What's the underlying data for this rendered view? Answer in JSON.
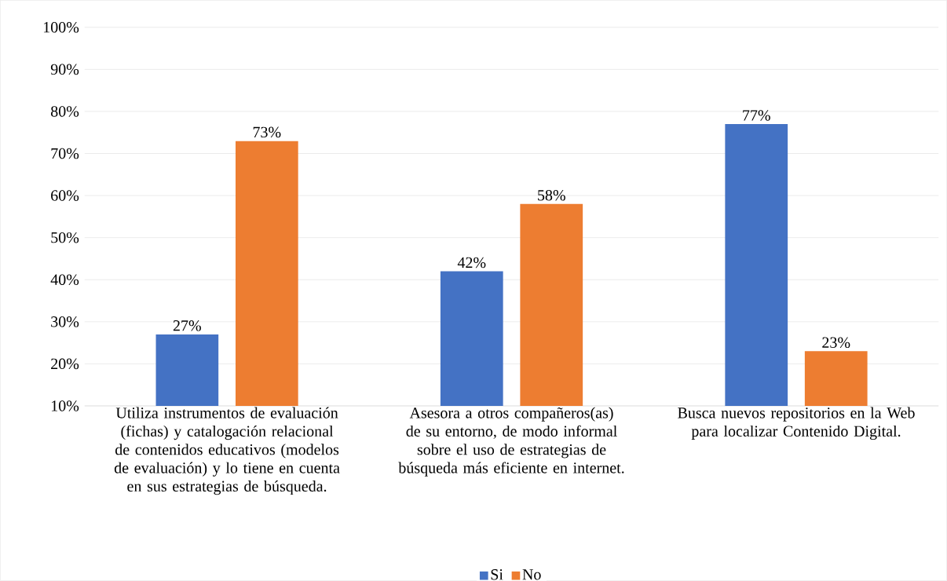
{
  "chart_data": {
    "type": "bar",
    "categories": [
      "Utiliza instrumentos de evaluación (fichas) y catalogación relacional de contenidos educativos (modelos de evaluación) y lo tiene en cuenta en sus estrategias de búsqueda.",
      "Asesora a otros compañeros(as) de su entorno, de modo informal sobre el uso de estrategias de búsqueda más eficiente en internet.",
      "Busca nuevos repositorios en la Web para localizar Contenido Digital."
    ],
    "series": [
      {
        "name": "Si",
        "color": "#4472c4",
        "values": [
          27,
          42,
          77
        ],
        "value_labels": [
          "27%",
          "42%",
          "77%"
        ]
      },
      {
        "name": "No",
        "color": "#ed7d31",
        "values": [
          73,
          58,
          23
        ],
        "value_labels": [
          "73%",
          "58%",
          "23%"
        ]
      }
    ],
    "ylim": [
      10,
      100
    ],
    "yticks": [
      {
        "value": 10,
        "label": "10%"
      },
      {
        "value": 20,
        "label": "20%"
      },
      {
        "value": 30,
        "label": "30%"
      },
      {
        "value": 40,
        "label": "40%"
      },
      {
        "value": 50,
        "label": "50%"
      },
      {
        "value": 60,
        "label": "60%"
      },
      {
        "value": 70,
        "label": "70%"
      },
      {
        "value": 80,
        "label": "80%"
      },
      {
        "value": 90,
        "label": "90%"
      },
      {
        "value": 100,
        "label": "100%"
      }
    ],
    "grid": "y",
    "legend": "bottom"
  }
}
